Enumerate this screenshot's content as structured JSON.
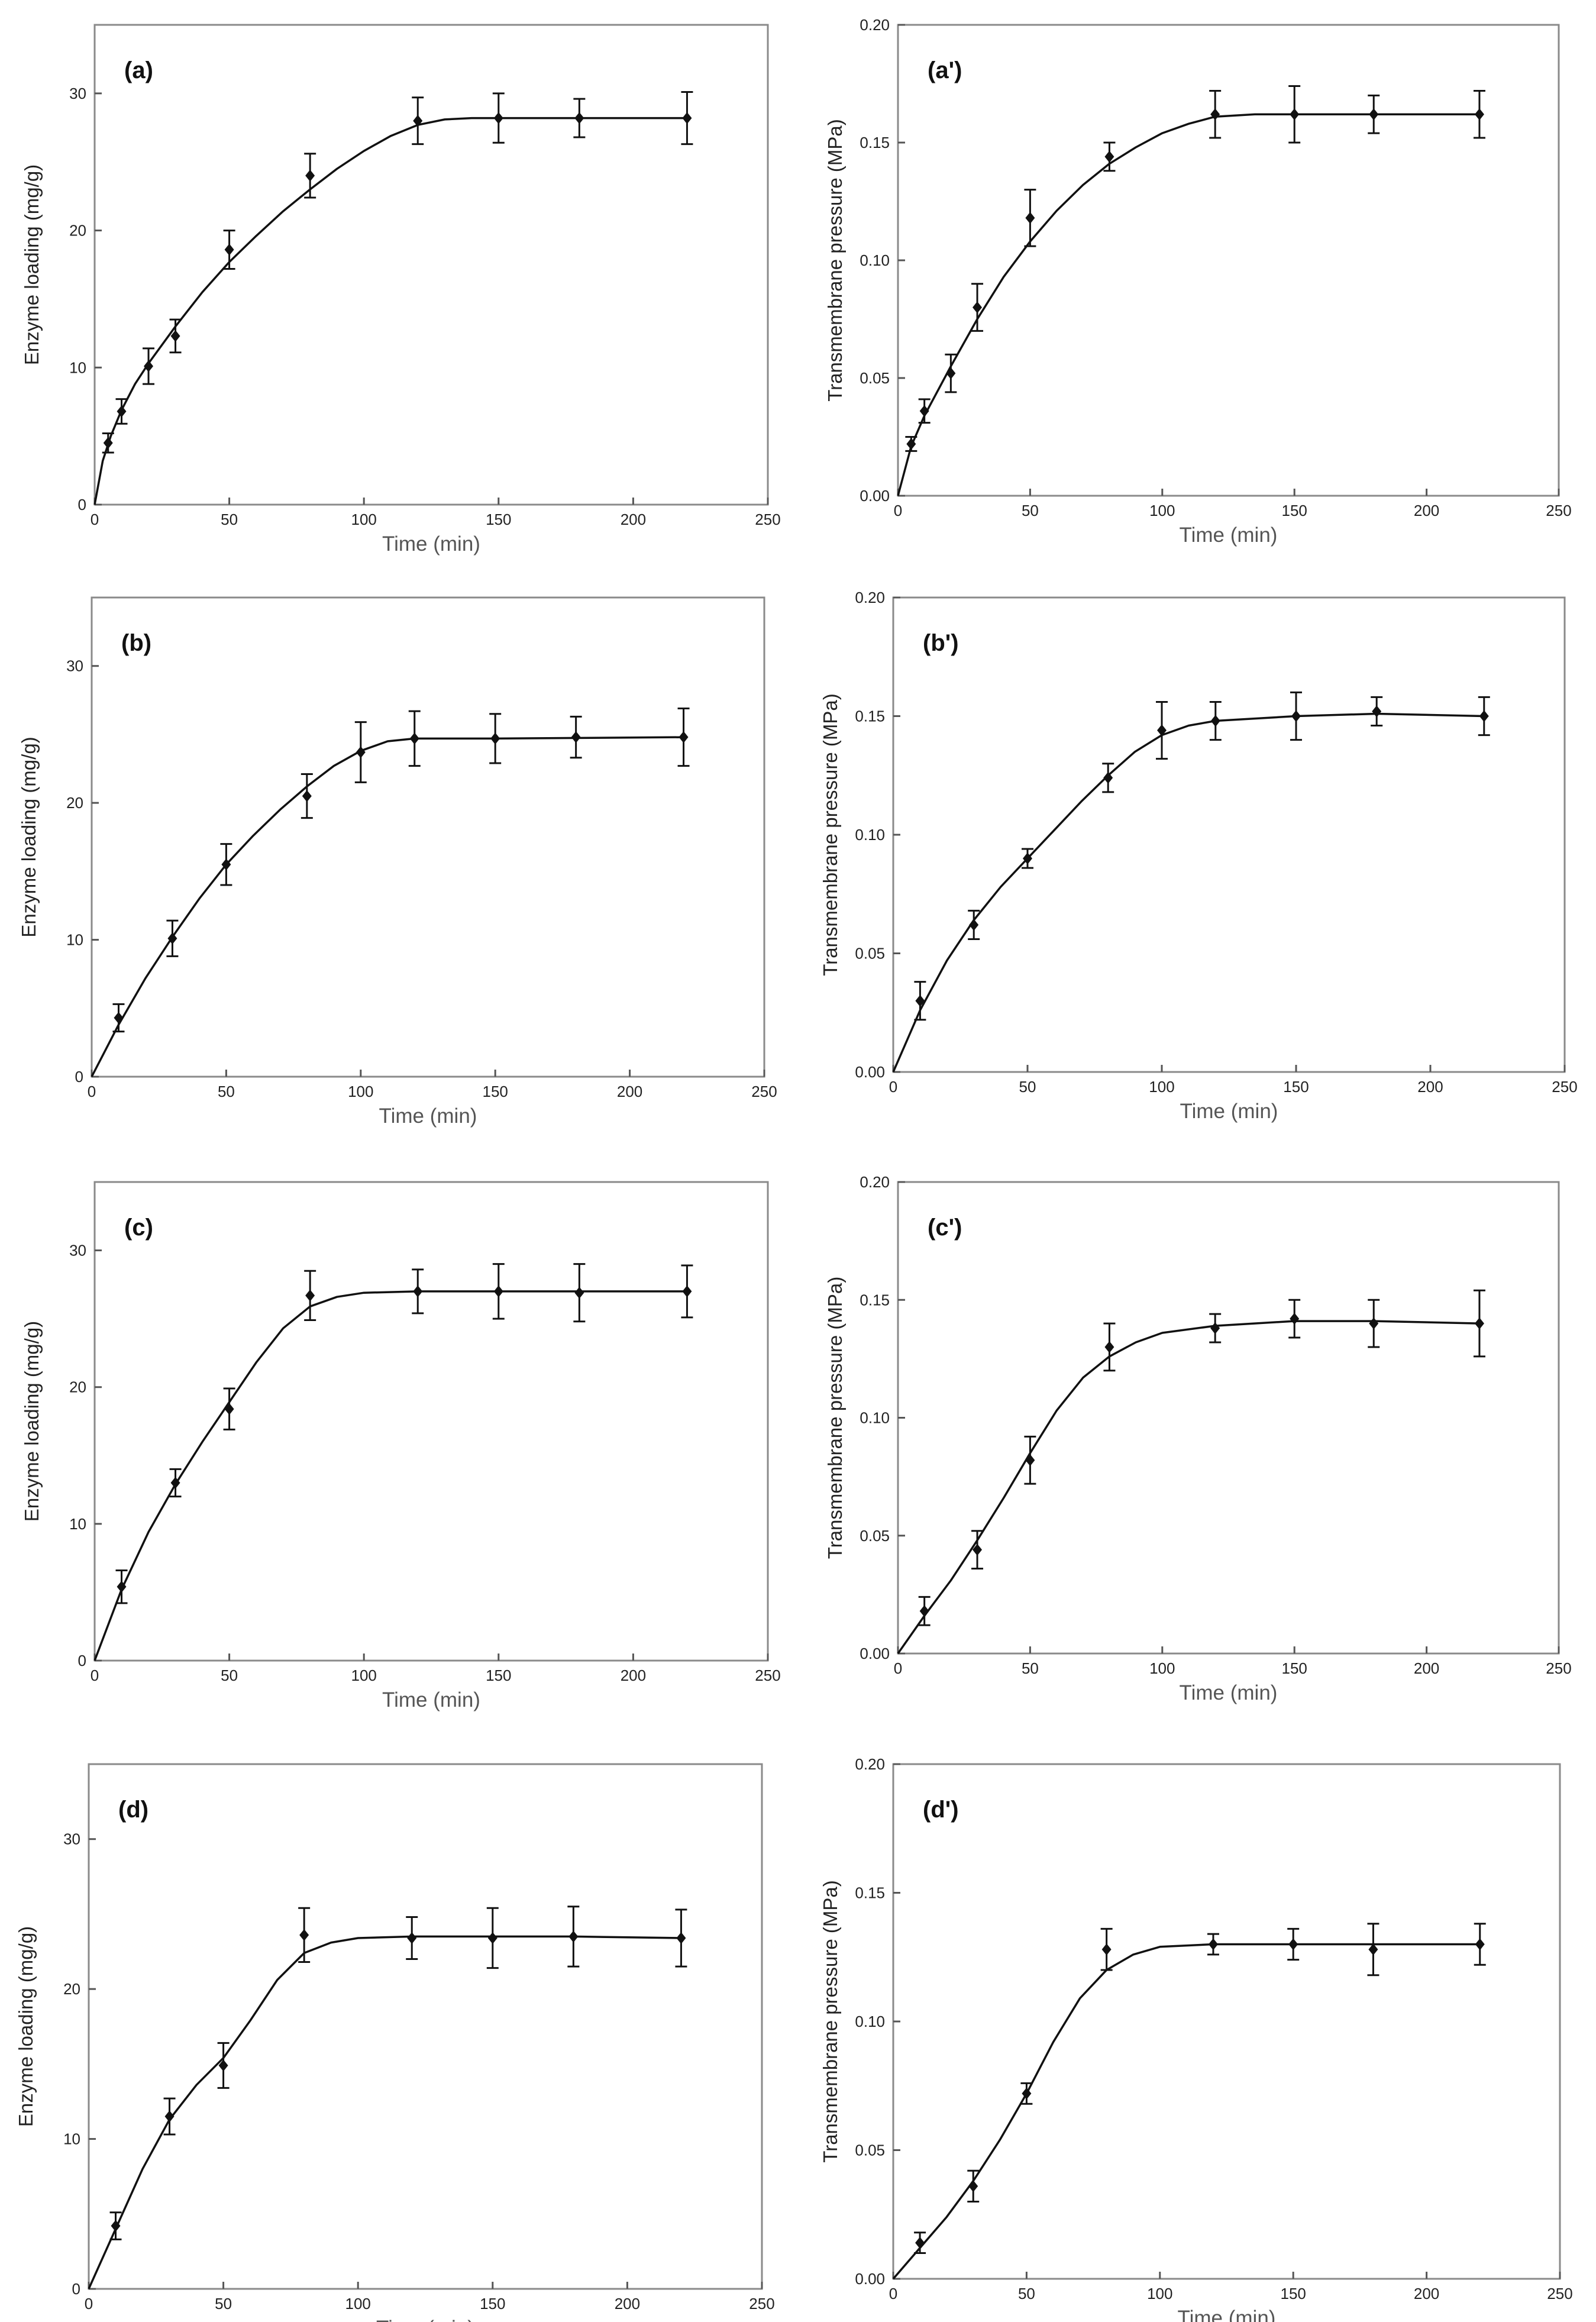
{
  "chart_data": [
    {
      "type": "line",
      "panel_label": "(a)",
      "xlabel": "Time (min)",
      "ylabel": "Enzyme loading (mg/g)",
      "xlim": [
        0,
        250
      ],
      "ylim": [
        0,
        35
      ],
      "xticks": [
        0,
        50,
        100,
        150,
        200,
        250
      ],
      "yticks": [
        0,
        10,
        20,
        30
      ],
      "ytick_labels": [
        "0",
        "10",
        "20",
        "30"
      ],
      "series": [
        {
          "name": "Enzyme loading",
          "x": [
            5,
            10,
            20,
            30,
            50,
            80,
            120,
            150,
            180,
            220
          ],
          "y": [
            4.5,
            6.8,
            10.1,
            12.3,
            18.6,
            24.0,
            28.0,
            28.2,
            28.2,
            28.2
          ],
          "err": [
            0.7,
            0.9,
            1.3,
            1.2,
            1.4,
            1.6,
            1.7,
            1.8,
            1.4,
            1.9
          ],
          "fit": [
            [
              0,
              0
            ],
            [
              3,
              3.2
            ],
            [
              6,
              5.0
            ],
            [
              10,
              6.9
            ],
            [
              15,
              8.8
            ],
            [
              20,
              10.3
            ],
            [
              30,
              13.0
            ],
            [
              40,
              15.5
            ],
            [
              50,
              17.7
            ],
            [
              60,
              19.6
            ],
            [
              70,
              21.4
            ],
            [
              80,
              23.0
            ],
            [
              90,
              24.5
            ],
            [
              100,
              25.8
            ],
            [
              110,
              26.9
            ],
            [
              120,
              27.7
            ],
            [
              130,
              28.1
            ],
            [
              140,
              28.2
            ],
            [
              150,
              28.2
            ],
            [
              220,
              28.2
            ]
          ]
        }
      ]
    },
    {
      "type": "line",
      "panel_label": "(a')",
      "xlabel": "Time (min)",
      "ylabel": "Transmembrane pressure (MPa)",
      "xlim": [
        0,
        250
      ],
      "ylim": [
        0,
        0.2
      ],
      "xticks": [
        0,
        50,
        100,
        150,
        200,
        250
      ],
      "yticks": [
        0,
        0.05,
        0.1,
        0.15,
        0.2
      ],
      "ytick_labels": [
        "0.00",
        "0.05",
        "0.10",
        "0.15",
        "0.20"
      ],
      "series": [
        {
          "name": "Transmembrane pressure",
          "x": [
            5,
            10,
            20,
            30,
            50,
            80,
            120,
            150,
            180,
            220
          ],
          "y": [
            0.022,
            0.036,
            0.052,
            0.08,
            0.118,
            0.144,
            0.162,
            0.162,
            0.162,
            0.162
          ],
          "err": [
            0.003,
            0.005,
            0.008,
            0.01,
            0.012,
            0.006,
            0.01,
            0.012,
            0.008,
            0.01
          ],
          "fit": [
            [
              0,
              0
            ],
            [
              5,
              0.021
            ],
            [
              10,
              0.034
            ],
            [
              20,
              0.055
            ],
            [
              30,
              0.075
            ],
            [
              40,
              0.093
            ],
            [
              50,
              0.108
            ],
            [
              60,
              0.121
            ],
            [
              70,
              0.132
            ],
            [
              80,
              0.141
            ],
            [
              90,
              0.148
            ],
            [
              100,
              0.154
            ],
            [
              110,
              0.158
            ],
            [
              120,
              0.161
            ],
            [
              135,
              0.162
            ],
            [
              150,
              0.162
            ],
            [
              220,
              0.162
            ]
          ]
        }
      ]
    },
    {
      "type": "line",
      "panel_label": "(b)",
      "xlabel": "Time (min)",
      "ylabel": "Enzyme loading (mg/g)",
      "xlim": [
        0,
        250
      ],
      "ylim": [
        0,
        35
      ],
      "xticks": [
        0,
        50,
        100,
        150,
        200,
        250
      ],
      "yticks": [
        0,
        10,
        20,
        30
      ],
      "ytick_labels": [
        "0",
        "10",
        "20",
        "30"
      ],
      "series": [
        {
          "name": "Enzyme loading",
          "x": [
            10,
            30,
            50,
            80,
            100,
            120,
            150,
            180,
            220
          ],
          "y": [
            4.3,
            10.1,
            15.5,
            20.5,
            23.7,
            24.7,
            24.7,
            24.8,
            24.8
          ],
          "err": [
            1.0,
            1.3,
            1.5,
            1.6,
            2.2,
            2.0,
            1.8,
            1.5,
            2.1
          ],
          "fit": [
            [
              0,
              0
            ],
            [
              10,
              3.8
            ],
            [
              20,
              7.2
            ],
            [
              30,
              10.2
            ],
            [
              40,
              13.0
            ],
            [
              50,
              15.5
            ],
            [
              60,
              17.6
            ],
            [
              70,
              19.5
            ],
            [
              80,
              21.2
            ],
            [
              90,
              22.7
            ],
            [
              100,
              23.8
            ],
            [
              110,
              24.5
            ],
            [
              120,
              24.7
            ],
            [
              150,
              24.7
            ],
            [
              220,
              24.8
            ]
          ]
        }
      ]
    },
    {
      "type": "line",
      "panel_label": "(b')",
      "xlabel": "Time (min)",
      "ylabel": "Transmembrane pressure (MPa)",
      "xlim": [
        0,
        250
      ],
      "ylim": [
        0,
        0.2
      ],
      "xticks": [
        0,
        50,
        100,
        150,
        200,
        250
      ],
      "yticks": [
        0,
        0.05,
        0.1,
        0.15,
        0.2
      ],
      "ytick_labels": [
        "0.00",
        "0.05",
        "0.10",
        "0.15",
        "0.20"
      ],
      "series": [
        {
          "name": "Transmembrane pressure",
          "x": [
            10,
            30,
            50,
            80,
            100,
            120,
            150,
            180,
            220
          ],
          "y": [
            0.03,
            0.062,
            0.09,
            0.124,
            0.144,
            0.148,
            0.15,
            0.152,
            0.15
          ],
          "err": [
            0.008,
            0.006,
            0.004,
            0.006,
            0.012,
            0.008,
            0.01,
            0.006,
            0.008
          ],
          "fit": [
            [
              0,
              0
            ],
            [
              10,
              0.026
            ],
            [
              20,
              0.047
            ],
            [
              30,
              0.064
            ],
            [
              40,
              0.078
            ],
            [
              50,
              0.09
            ],
            [
              60,
              0.102
            ],
            [
              70,
              0.114
            ],
            [
              80,
              0.125
            ],
            [
              90,
              0.135
            ],
            [
              100,
              0.142
            ],
            [
              110,
              0.146
            ],
            [
              120,
              0.148
            ],
            [
              150,
              0.15
            ],
            [
              180,
              0.151
            ],
            [
              220,
              0.15
            ]
          ]
        }
      ]
    },
    {
      "type": "line",
      "panel_label": "(c)",
      "xlabel": "Time (min)",
      "ylabel": "Enzyme loading (mg/g)",
      "xlim": [
        0,
        250
      ],
      "ylim": [
        0,
        35
      ],
      "xticks": [
        0,
        50,
        100,
        150,
        200,
        250
      ],
      "yticks": [
        0,
        10,
        20,
        30
      ],
      "ytick_labels": [
        "0",
        "10",
        "20",
        "30"
      ],
      "series": [
        {
          "name": "Enzyme loading",
          "x": [
            10,
            30,
            50,
            80,
            120,
            150,
            180,
            220
          ],
          "y": [
            5.4,
            13.0,
            18.4,
            26.7,
            27.0,
            27.0,
            26.9,
            27.0
          ],
          "err": [
            1.2,
            1.0,
            1.5,
            1.8,
            1.6,
            2.0,
            2.1,
            1.9
          ],
          "fit": [
            [
              0,
              0
            ],
            [
              10,
              5.2
            ],
            [
              20,
              9.4
            ],
            [
              30,
              12.9
            ],
            [
              40,
              16.0
            ],
            [
              50,
              18.9
            ],
            [
              60,
              21.8
            ],
            [
              70,
              24.3
            ],
            [
              80,
              25.9
            ],
            [
              90,
              26.6
            ],
            [
              100,
              26.9
            ],
            [
              120,
              27.0
            ],
            [
              220,
              27.0
            ]
          ]
        }
      ]
    },
    {
      "type": "line",
      "panel_label": "(c')",
      "xlabel": "Time (min)",
      "ylabel": "Transmembrane pressure (MPa)",
      "xlim": [
        0,
        250
      ],
      "ylim": [
        0,
        0.2
      ],
      "xticks": [
        0,
        50,
        100,
        150,
        200,
        250
      ],
      "yticks": [
        0,
        0.05,
        0.1,
        0.15,
        0.2
      ],
      "ytick_labels": [
        "0.00",
        "0.05",
        "0.10",
        "0.15",
        "0.20"
      ],
      "series": [
        {
          "name": "Transmembrane pressure",
          "x": [
            10,
            30,
            50,
            80,
            120,
            150,
            180,
            220
          ],
          "y": [
            0.018,
            0.044,
            0.082,
            0.13,
            0.138,
            0.142,
            0.14,
            0.14
          ],
          "err": [
            0.006,
            0.008,
            0.01,
            0.01,
            0.006,
            0.008,
            0.01,
            0.014
          ],
          "fit": [
            [
              0,
              0
            ],
            [
              10,
              0.016
            ],
            [
              20,
              0.031
            ],
            [
              30,
              0.048
            ],
            [
              40,
              0.066
            ],
            [
              50,
              0.085
            ],
            [
              60,
              0.103
            ],
            [
              70,
              0.117
            ],
            [
              80,
              0.126
            ],
            [
              90,
              0.132
            ],
            [
              100,
              0.136
            ],
            [
              120,
              0.139
            ],
            [
              150,
              0.141
            ],
            [
              180,
              0.141
            ],
            [
              220,
              0.14
            ]
          ]
        }
      ]
    },
    {
      "type": "line",
      "panel_label": "(d)",
      "xlabel": "Time (min)",
      "ylabel": "Enzyme loading (mg/g)",
      "xlim": [
        0,
        250
      ],
      "ylim": [
        0,
        35
      ],
      "xticks": [
        0,
        50,
        100,
        150,
        200,
        250
      ],
      "yticks": [
        0,
        10,
        20,
        30
      ],
      "ytick_labels": [
        "0",
        "10",
        "20",
        "30"
      ],
      "series": [
        {
          "name": "Enzyme loading",
          "x": [
            10,
            30,
            50,
            80,
            120,
            150,
            180,
            220
          ],
          "y": [
            4.2,
            11.5,
            14.9,
            23.6,
            23.4,
            23.4,
            23.5,
            23.4
          ],
          "err": [
            0.9,
            1.2,
            1.5,
            1.8,
            1.4,
            2.0,
            2.0,
            1.9
          ],
          "fit": [
            [
              0,
              0
            ],
            [
              10,
              4.0
            ],
            [
              20,
              8.0
            ],
            [
              30,
              11.3
            ],
            [
              40,
              13.6
            ],
            [
              50,
              15.4
            ],
            [
              60,
              17.9
            ],
            [
              70,
              20.6
            ],
            [
              80,
              22.4
            ],
            [
              90,
              23.1
            ],
            [
              100,
              23.4
            ],
            [
              120,
              23.5
            ],
            [
              150,
              23.5
            ],
            [
              180,
              23.5
            ],
            [
              220,
              23.4
            ]
          ]
        }
      ]
    },
    {
      "type": "line",
      "panel_label": "(d')",
      "xlabel": "Time (min)",
      "ylabel": "Transmembrane pressure (MPa)",
      "xlim": [
        0,
        250
      ],
      "ylim": [
        0,
        0.2
      ],
      "xticks": [
        0,
        50,
        100,
        150,
        200,
        250
      ],
      "yticks": [
        0,
        0.05,
        0.1,
        0.15,
        0.2
      ],
      "ytick_labels": [
        "0.00",
        "0.05",
        "0.10",
        "0.15",
        "0.20"
      ],
      "series": [
        {
          "name": "Transmembrane pressure",
          "x": [
            10,
            30,
            50,
            80,
            120,
            150,
            180,
            220
          ],
          "y": [
            0.014,
            0.036,
            0.072,
            0.128,
            0.13,
            0.13,
            0.128,
            0.13
          ],
          "err": [
            0.004,
            0.006,
            0.004,
            0.008,
            0.004,
            0.006,
            0.01,
            0.008
          ],
          "fit": [
            [
              0,
              0
            ],
            [
              10,
              0.012
            ],
            [
              20,
              0.024
            ],
            [
              30,
              0.038
            ],
            [
              40,
              0.054
            ],
            [
              50,
              0.072
            ],
            [
              60,
              0.092
            ],
            [
              70,
              0.109
            ],
            [
              80,
              0.12
            ],
            [
              90,
              0.126
            ],
            [
              100,
              0.129
            ],
            [
              120,
              0.13
            ],
            [
              150,
              0.13
            ],
            [
              180,
              0.13
            ],
            [
              220,
              0.13
            ]
          ]
        }
      ]
    }
  ]
}
